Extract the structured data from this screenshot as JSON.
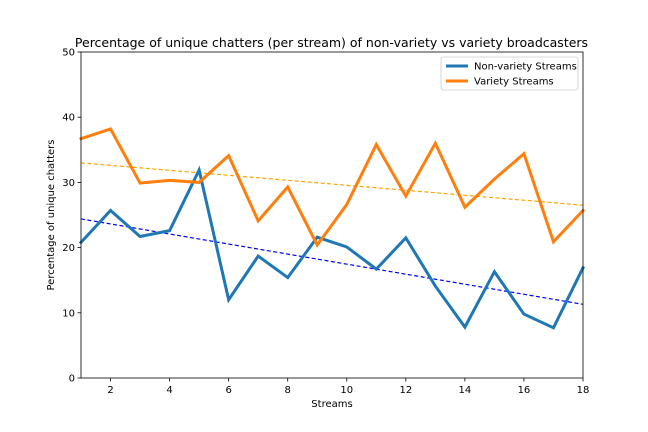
{
  "chart_data": {
    "type": "line",
    "title": "Percentage of unique chatters (per stream) of non-variety vs variety broadcasters",
    "xlabel": "Streams",
    "ylabel": "Percentage of unique chatters",
    "xlim": [
      1,
      18
    ],
    "ylim": [
      0,
      50
    ],
    "xticks": [
      2,
      4,
      6,
      8,
      10,
      12,
      14,
      16,
      18
    ],
    "yticks": [
      0,
      10,
      20,
      30,
      40,
      50
    ],
    "grid": false,
    "legend_position": "top-right",
    "x": [
      1,
      2,
      3,
      4,
      5,
      6,
      7,
      8,
      9,
      10,
      11,
      12,
      13,
      14,
      15,
      16,
      17,
      18
    ],
    "series": [
      {
        "name": "Non-variety Streams",
        "color": "#1f77b4",
        "values": [
          20.8,
          25.7,
          21.7,
          22.6,
          31.9,
          12.0,
          18.7,
          15.4,
          21.6,
          20.1,
          16.7,
          21.5,
          14.1,
          7.8,
          16.3,
          9.8,
          7.7,
          16.9
        ],
        "trend": {
          "color": "#0000ff",
          "start": [
            1,
            24.4
          ],
          "end": [
            18,
            11.3
          ]
        }
      },
      {
        "name": "Variety Streams",
        "color": "#ff7f0e",
        "values": [
          36.7,
          38.2,
          29.9,
          30.3,
          30.0,
          34.1,
          24.1,
          29.3,
          20.4,
          26.6,
          35.8,
          27.9,
          36.0,
          26.2,
          30.5,
          34.4,
          20.9,
          25.7
        ],
        "trend": {
          "color": "#ffa500",
          "start": [
            1,
            33.0
          ],
          "end": [
            18,
            26.5
          ]
        }
      }
    ]
  }
}
